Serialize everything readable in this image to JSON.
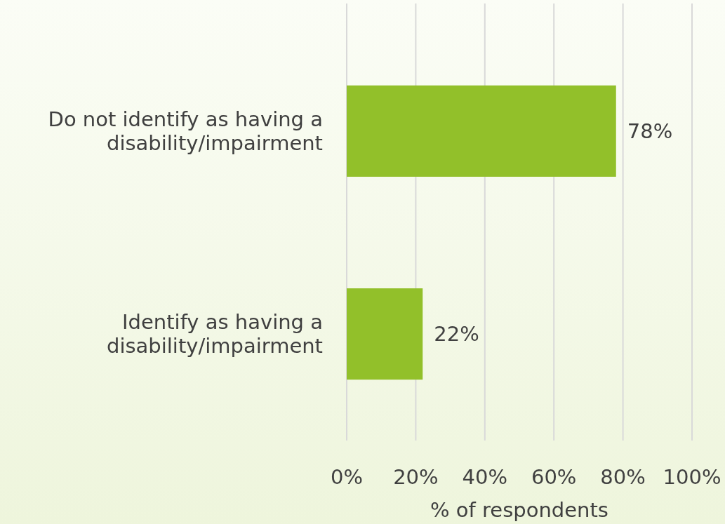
{
  "chart_data": {
    "type": "bar",
    "orientation": "horizontal",
    "categories": [
      "Do not identify as having a disability/impairment",
      "Identify as having a disability/impairment"
    ],
    "values": [
      78,
      22
    ],
    "color": "#92c02a",
    "value_labels": [
      "78%",
      "22%"
    ],
    "xlim": [
      0,
      100
    ],
    "xticks": [
      {
        "value": 0,
        "label": "0%"
      },
      {
        "value": 20,
        "label": "20%"
      },
      {
        "value": 40,
        "label": "40%"
      },
      {
        "value": 60,
        "label": "60%"
      },
      {
        "value": 80,
        "label": "80%"
      },
      {
        "value": 100,
        "label": "100%"
      }
    ],
    "xlabel": "% of respondents",
    "grid": "x"
  }
}
